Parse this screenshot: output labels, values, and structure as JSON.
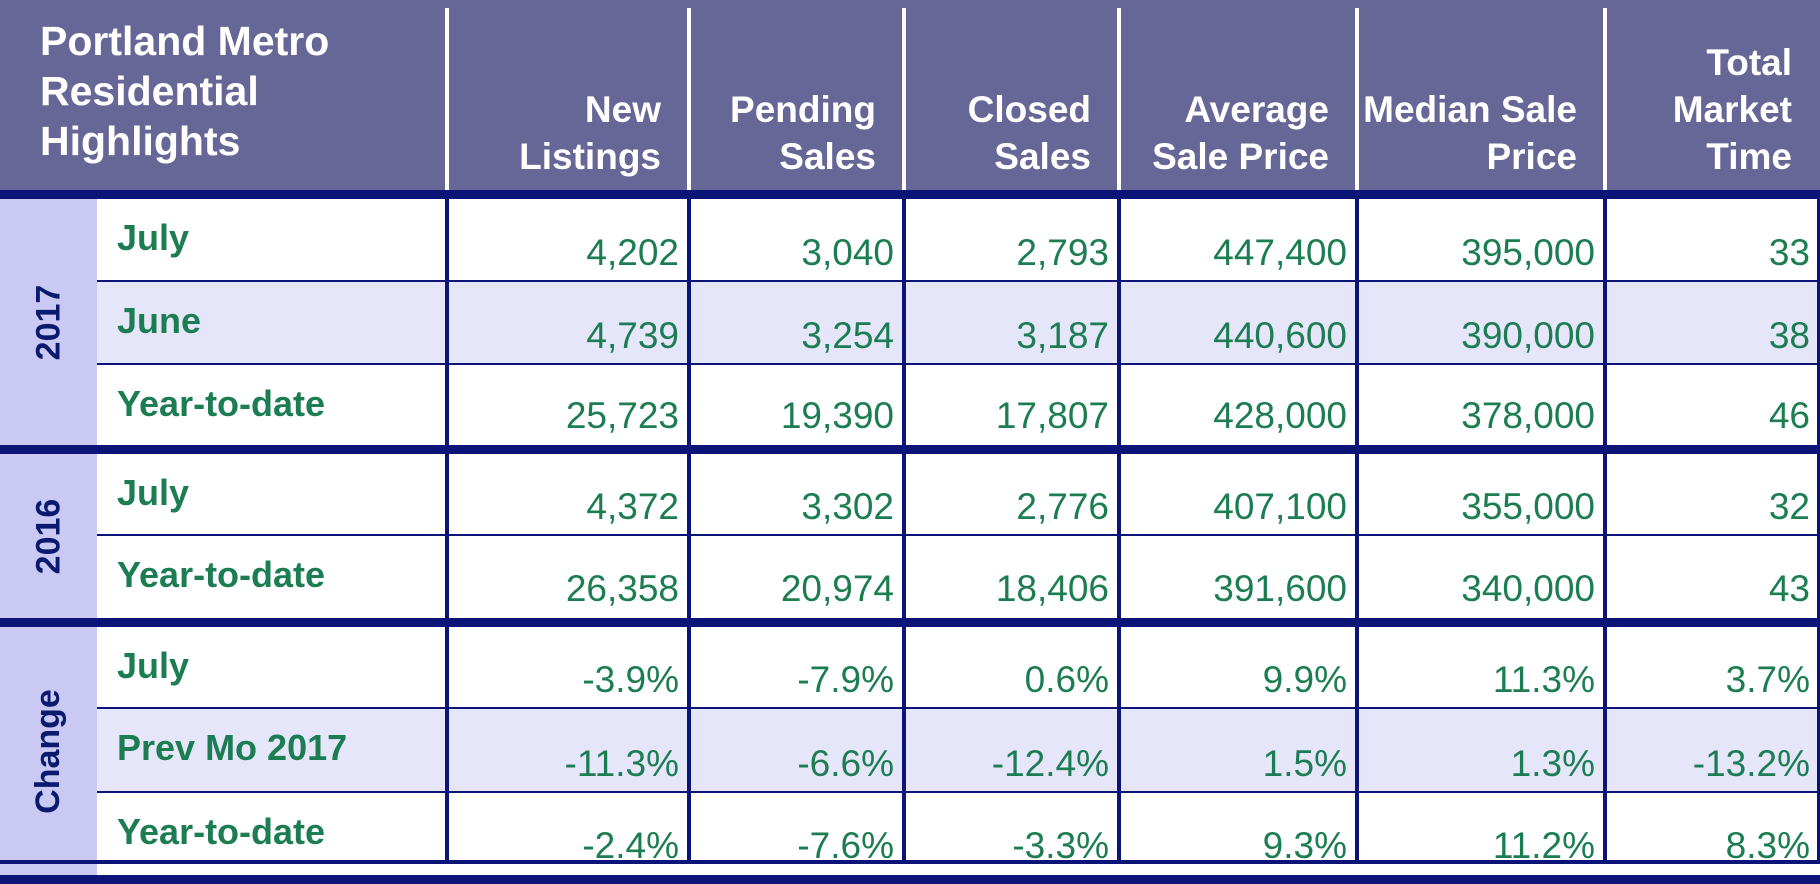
{
  "chart_data": {
    "type": "table",
    "title": "Portland Metro Residential Highlights",
    "columns": [
      "New Listings",
      "Pending Sales",
      "Closed Sales",
      "Average Sale Price",
      "Median Sale Price",
      "Total Market Time"
    ],
    "groups": [
      {
        "name": "2017",
        "rows": [
          {
            "label": "July",
            "values": [
              "4,202",
              "3,040",
              "2,793",
              "447,400",
              "395,000",
              "33"
            ]
          },
          {
            "label": "June",
            "values": [
              "4,739",
              "3,254",
              "3,187",
              "440,600",
              "390,000",
              "38"
            ]
          },
          {
            "label": "Year-to-date",
            "values": [
              "25,723",
              "19,390",
              "17,807",
              "428,000",
              "378,000",
              "46"
            ]
          }
        ]
      },
      {
        "name": "2016",
        "rows": [
          {
            "label": "July",
            "values": [
              "4,372",
              "3,302",
              "2,776",
              "407,100",
              "355,000",
              "32"
            ]
          },
          {
            "label": "Year-to-date",
            "values": [
              "26,358",
              "20,974",
              "18,406",
              "391,600",
              "340,000",
              "43"
            ]
          }
        ]
      },
      {
        "name": "Change",
        "rows": [
          {
            "label": "July",
            "values": [
              "-3.9%",
              "-7.9%",
              "0.6%",
              "9.9%",
              "11.3%",
              "3.7%"
            ]
          },
          {
            "label": "Prev Mo 2017",
            "values": [
              "-11.3%",
              "-6.6%",
              "-12.4%",
              "1.5%",
              "1.3%",
              "-13.2%"
            ]
          },
          {
            "label": "Year-to-date",
            "values": [
              "-2.4%",
              "-7.6%",
              "-3.3%",
              "9.3%",
              "11.2%",
              "8.3%"
            ]
          }
        ]
      }
    ]
  },
  "colors": {
    "header_bg": "#676797",
    "group_bg": "#c9c9f4",
    "row_alt_bg": "#e6e6fb",
    "row_bg": "#ffffff",
    "value_text": "#1c7d52",
    "group_text": "#0a1a6e",
    "border": "#0c1577"
  }
}
